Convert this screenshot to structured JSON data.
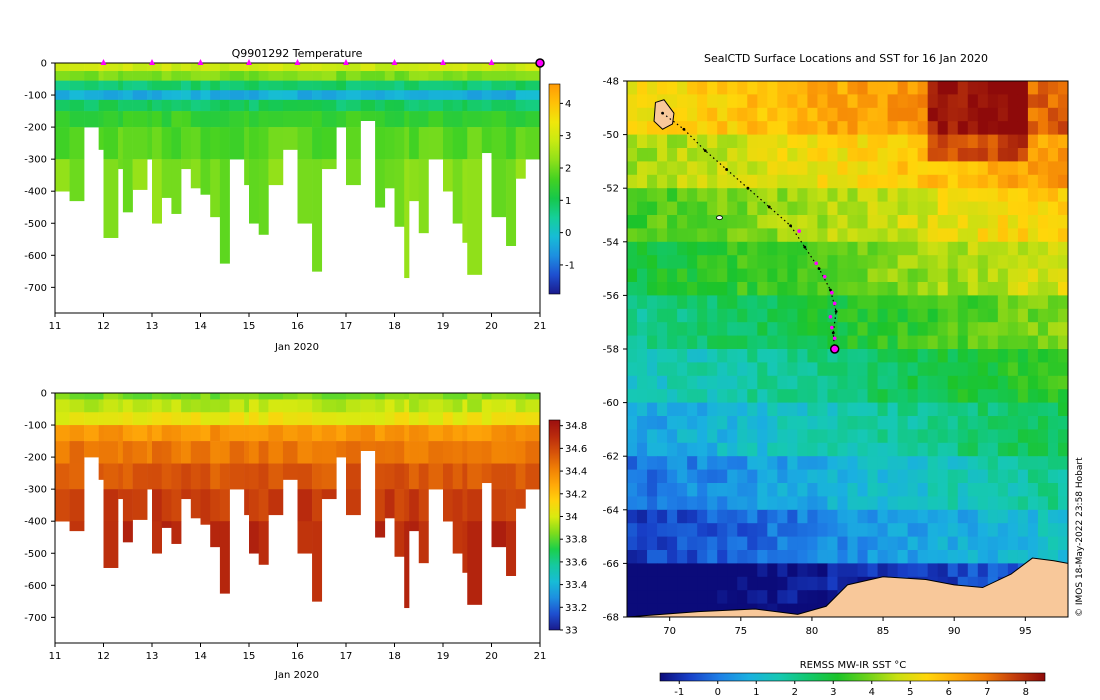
{
  "colors": {
    "temp_scale": [
      "#1a1a8c",
      "#1e4fd0",
      "#1d8fe0",
      "#17bcd6",
      "#15cf9a",
      "#16c84b",
      "#43d222",
      "#8ee01a",
      "#c7ea12",
      "#f0e70b",
      "#ffc107",
      "#ff9a05"
    ],
    "sal_scale": [
      "#1a1a8c",
      "#1e4fd0",
      "#1d8fe0",
      "#17bcd6",
      "#16c9a0",
      "#1bd04a",
      "#7edc1c",
      "#d9ea10",
      "#ffd20c",
      "#ffa808",
      "#f07f05",
      "#d6520a",
      "#b92a0d",
      "#9c0f0f"
    ],
    "sst_scale": [
      "#0b0b7a",
      "#1840c8",
      "#1e7fe6",
      "#1ab0e0",
      "#16c8b4",
      "#12c86e",
      "#1cc42a",
      "#6cd21a",
      "#c8e012",
      "#ffd60a",
      "#ffa808",
      "#f07a05",
      "#c23c0c",
      "#8e0a0a"
    ],
    "land": "#f8c89a",
    "track": "#000000",
    "profile_marker": "#ff00ff"
  },
  "chart_data": [
    {
      "type": "heatmap",
      "title": "Q9901292  Temperature",
      "xlabel": "Jan 2020",
      "ylabel": "",
      "x_ticks": [
        "11",
        "12",
        "13",
        "14",
        "15",
        "16",
        "17",
        "18",
        "19",
        "20",
        "21"
      ],
      "x_range": [
        11,
        21
      ],
      "y_ticks": [
        "0",
        "-100",
        "-200",
        "-300",
        "-400",
        "-500",
        "-600",
        "-700"
      ],
      "y_range": [
        -780,
        0
      ],
      "colorbar_ticks": [
        "4",
        "3",
        "2",
        "1",
        "0",
        "-1"
      ],
      "colorbar_range": [
        -1.9,
        4.6
      ],
      "profile_times": [
        12,
        13,
        14,
        15,
        16,
        17,
        18,
        19,
        20
      ],
      "last_profile": 21,
      "layers": [
        {
          "top": 0,
          "bottom": -25,
          "value": 2.9
        },
        {
          "top": -25,
          "bottom": -55,
          "value": 2.1
        },
        {
          "top": -55,
          "bottom": -85,
          "value": 0.8
        },
        {
          "top": -85,
          "bottom": -115,
          "value": -0.3
        },
        {
          "top": -115,
          "bottom": -150,
          "value": 0.9
        },
        {
          "top": -150,
          "bottom": -200,
          "value": 1.5
        },
        {
          "top": -200,
          "bottom": -300,
          "value": 1.8
        },
        {
          "top": -300,
          "bottom": -780,
          "value": 2.1
        }
      ],
      "profile_depths": [
        {
          "time": 11.0,
          "depth": 400
        },
        {
          "time": 11.3,
          "depth": 430
        },
        {
          "time": 11.6,
          "depth": 200
        },
        {
          "time": 11.9,
          "depth": 270
        },
        {
          "time": 12.0,
          "depth": 545
        },
        {
          "time": 12.3,
          "depth": 330
        },
        {
          "time": 12.4,
          "depth": 465
        },
        {
          "time": 12.6,
          "depth": 395
        },
        {
          "time": 12.9,
          "depth": 300
        },
        {
          "time": 13.0,
          "depth": 500
        },
        {
          "time": 13.2,
          "depth": 420
        },
        {
          "time": 13.4,
          "depth": 470
        },
        {
          "time": 13.6,
          "depth": 330
        },
        {
          "time": 13.8,
          "depth": 390
        },
        {
          "time": 14.0,
          "depth": 410
        },
        {
          "time": 14.2,
          "depth": 480
        },
        {
          "time": 14.4,
          "depth": 625
        },
        {
          "time": 14.6,
          "depth": 300
        },
        {
          "time": 14.9,
          "depth": 380
        },
        {
          "time": 15.0,
          "depth": 500
        },
        {
          "time": 15.2,
          "depth": 535
        },
        {
          "time": 15.4,
          "depth": 380
        },
        {
          "time": 15.7,
          "depth": 270
        },
        {
          "time": 16.0,
          "depth": 500
        },
        {
          "time": 16.3,
          "depth": 650
        },
        {
          "time": 16.5,
          "depth": 330
        },
        {
          "time": 16.8,
          "depth": 200
        },
        {
          "time": 17.0,
          "depth": 380
        },
        {
          "time": 17.3,
          "depth": 180
        },
        {
          "time": 17.6,
          "depth": 450
        },
        {
          "time": 17.8,
          "depth": 390
        },
        {
          "time": 18.0,
          "depth": 510
        },
        {
          "time": 18.2,
          "depth": 670
        },
        {
          "time": 18.3,
          "depth": 430
        },
        {
          "time": 18.5,
          "depth": 530
        },
        {
          "time": 18.7,
          "depth": 300
        },
        {
          "time": 19.0,
          "depth": 400
        },
        {
          "time": 19.2,
          "depth": 500
        },
        {
          "time": 19.4,
          "depth": 560
        },
        {
          "time": 19.5,
          "depth": 660
        },
        {
          "time": 19.8,
          "depth": 280
        },
        {
          "time": 20.0,
          "depth": 480
        },
        {
          "time": 20.3,
          "depth": 570
        },
        {
          "time": 20.5,
          "depth": 360
        },
        {
          "time": 20.7,
          "depth": 300
        },
        {
          "time": 21.0,
          "depth": 300
        }
      ]
    },
    {
      "type": "heatmap",
      "title": "",
      "xlabel": "Jan 2020",
      "ylabel": "",
      "x_ticks": [
        "11",
        "12",
        "13",
        "14",
        "15",
        "16",
        "17",
        "18",
        "19",
        "20",
        "21"
      ],
      "x_range": [
        11,
        21
      ],
      "y_ticks": [
        "0",
        "-100",
        "-200",
        "-300",
        "-400",
        "-500",
        "-600",
        "-700"
      ],
      "y_range": [
        -780,
        0
      ],
      "colorbar_ticks": [
        "34.8",
        "34.6",
        "34.4",
        "34.2",
        "34",
        "33.8",
        "33.6",
        "33.4",
        "33.2",
        "33"
      ],
      "colorbar_range": [
        33.0,
        34.85
      ],
      "layers": [
        {
          "top": 0,
          "bottom": -20,
          "value": 33.85
        },
        {
          "top": -20,
          "bottom": -60,
          "value": 33.95
        },
        {
          "top": -60,
          "bottom": -100,
          "value": 34.05
        },
        {
          "top": -100,
          "bottom": -150,
          "value": 34.35
        },
        {
          "top": -150,
          "bottom": -220,
          "value": 34.45
        },
        {
          "top": -220,
          "bottom": -300,
          "value": 34.55
        },
        {
          "top": -300,
          "bottom": -400,
          "value": 34.65
        },
        {
          "top": -400,
          "bottom": -780,
          "value": 34.72
        }
      ]
    },
    {
      "type": "heatmap",
      "title": "SealCTD Surface Locations and SST for 16 Jan 2020",
      "xlabel": "",
      "ylabel": "",
      "x_ticks": [
        "70",
        "75",
        "80",
        "85",
        "90",
        "95"
      ],
      "x_range": [
        67,
        98
      ],
      "y_ticks": [
        "-48",
        "-50",
        "-52",
        "-54",
        "-56",
        "-58",
        "-60",
        "-62",
        "-64",
        "-66",
        "-68"
      ],
      "y_range": [
        -68,
        -48
      ],
      "colorbar_label": "REMSS MW-IR SST °C",
      "colorbar_ticks": [
        "-1",
        "0",
        "1",
        "2",
        "3",
        "4",
        "5",
        "6",
        "7",
        "8"
      ],
      "colorbar_range": [
        -1.5,
        8.5
      ],
      "sst_bands": [
        {
          "lat_top": -48,
          "lat_bottom": -50,
          "value": 6.2
        },
        {
          "lat_top": -50,
          "lat_bottom": -52,
          "value": 5.3
        },
        {
          "lat_top": -52,
          "lat_bottom": -54,
          "value": 4.5
        },
        {
          "lat_top": -54,
          "lat_bottom": -56,
          "value": 3.8
        },
        {
          "lat_top": -56,
          "lat_bottom": -58,
          "value": 3.0
        },
        {
          "lat_top": -58,
          "lat_bottom": -60,
          "value": 2.3
        },
        {
          "lat_top": -60,
          "lat_bottom": -62,
          "value": 1.6
        },
        {
          "lat_top": -62,
          "lat_bottom": -64,
          "value": 0.9
        },
        {
          "lat_top": -64,
          "lat_bottom": -66,
          "value": 0.2
        },
        {
          "lat_top": -66,
          "lat_bottom": -68,
          "value": -1.2
        }
      ],
      "track": [
        {
          "lon": 69.5,
          "lat": -49.2
        },
        {
          "lon": 71.0,
          "lat": -49.8
        },
        {
          "lon": 72.5,
          "lat": -50.6
        },
        {
          "lon": 74.0,
          "lat": -51.3
        },
        {
          "lon": 75.5,
          "lat": -52.0
        },
        {
          "lon": 77.0,
          "lat": -52.7
        },
        {
          "lon": 78.5,
          "lat": -53.4
        },
        {
          "lon": 79.5,
          "lat": -54.2
        },
        {
          "lon": 80.5,
          "lat": -55.0
        },
        {
          "lon": 81.3,
          "lat": -55.8
        },
        {
          "lon": 81.7,
          "lat": -56.6
        },
        {
          "lon": 81.5,
          "lat": -57.4
        },
        {
          "lon": 81.6,
          "lat": -58.1
        }
      ],
      "profile_positions": [
        {
          "lon": 79.1,
          "lat": -53.6
        },
        {
          "lon": 80.3,
          "lat": -54.8
        },
        {
          "lon": 80.9,
          "lat": -55.3
        },
        {
          "lon": 81.4,
          "lat": -55.9
        },
        {
          "lon": 81.6,
          "lat": -56.3
        },
        {
          "lon": 81.3,
          "lat": -56.8
        },
        {
          "lon": 81.4,
          "lat": -57.2
        },
        {
          "lon": 81.6,
          "lat": -57.6
        }
      ],
      "current_position": {
        "lon": 81.6,
        "lat": -58.0
      },
      "credit": "© IMOS 18-May-2022 23:58 Hobart"
    }
  ]
}
